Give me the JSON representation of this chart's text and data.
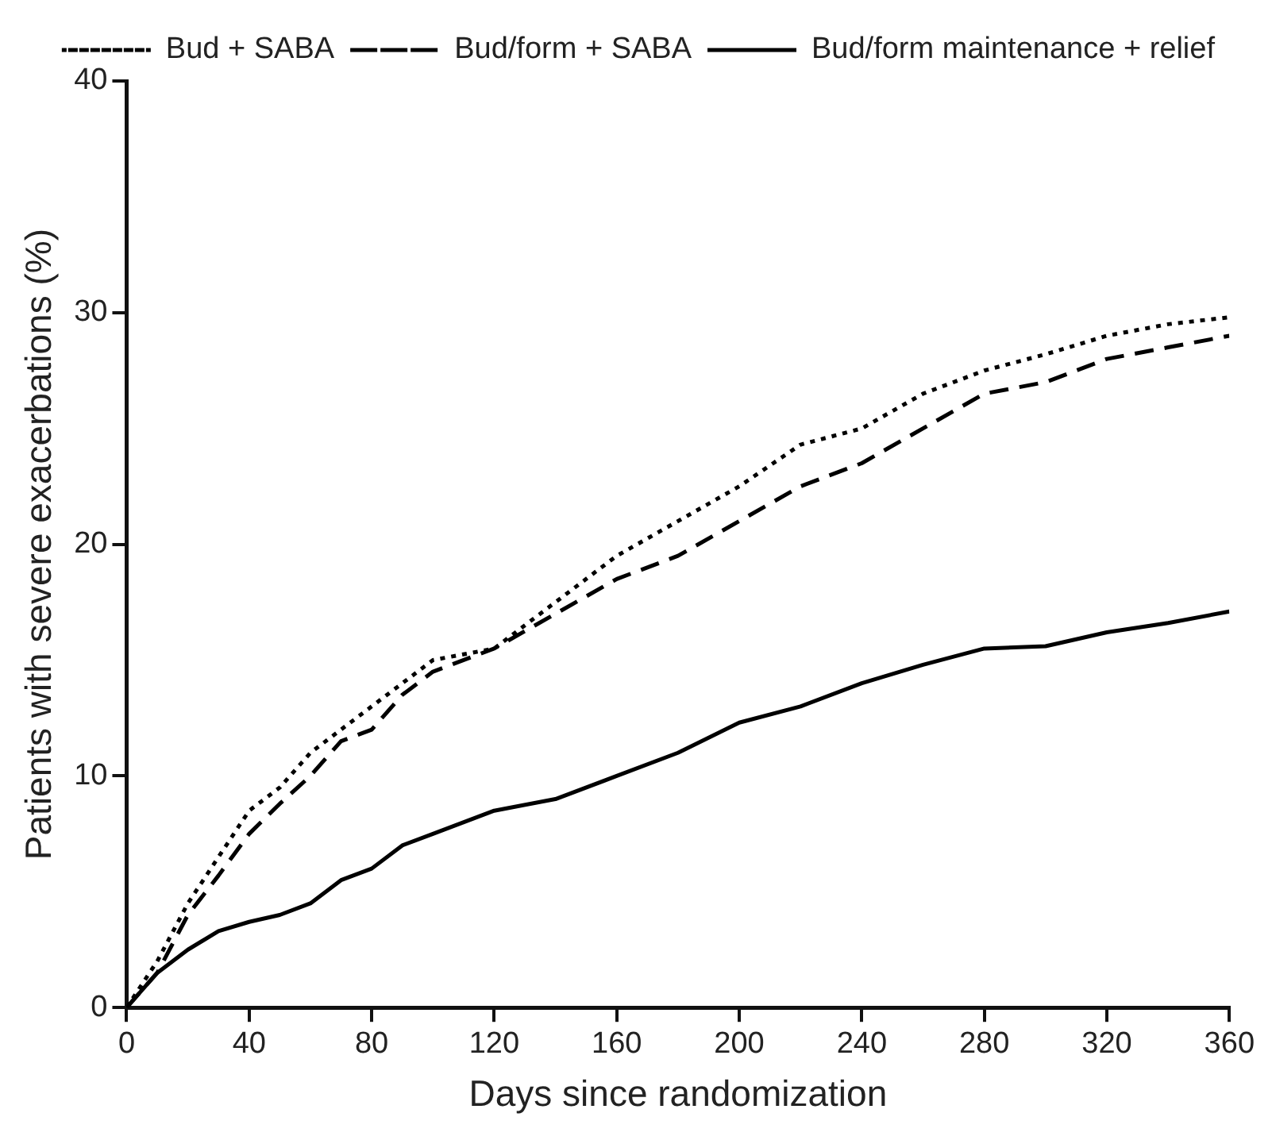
{
  "chart_data": {
    "type": "line",
    "xlabel": "Days since randomization",
    "ylabel": "Patients with severe exacerbations (%)",
    "x": [
      0,
      10,
      20,
      30,
      40,
      50,
      60,
      70,
      80,
      90,
      100,
      120,
      140,
      160,
      180,
      200,
      220,
      240,
      260,
      280,
      300,
      320,
      340,
      360
    ],
    "xlim": [
      0,
      360
    ],
    "xticks": [
      0,
      40,
      80,
      120,
      160,
      200,
      240,
      280,
      320,
      360
    ],
    "ylim": [
      0,
      40
    ],
    "yticks": [
      0,
      10,
      20,
      30,
      40
    ],
    "grid": false,
    "legend": "top right",
    "marker": "none",
    "series": [
      {
        "name": "Bud + SABA",
        "color": "#000000",
        "line_style": "dotted",
        "values": [
          0,
          2,
          4.5,
          6.5,
          8.5,
          9.5,
          11,
          12,
          13,
          14,
          15,
          15.5,
          17.5,
          19.5,
          21,
          22.5,
          24.3,
          25,
          26.5,
          27.5,
          28.2,
          29,
          29.5,
          29.8
        ]
      },
      {
        "name": "Bud/form + SABA",
        "color": "#000000",
        "line_style": "dashed",
        "values": [
          0,
          1.5,
          4,
          5.7,
          7.5,
          8.8,
          10,
          11.5,
          12,
          13.5,
          14.5,
          15.5,
          17,
          18.5,
          19.5,
          21,
          22.5,
          23.5,
          25,
          26.5,
          27,
          28,
          28.5,
          29
        ]
      },
      {
        "name": "Bud/form maintenance + relief",
        "color": "#000000",
        "line_style": "solid",
        "values": [
          0,
          1.5,
          2.5,
          3.3,
          3.7,
          4,
          4.5,
          5.5,
          6,
          7,
          7.5,
          8.5,
          9,
          10,
          11,
          12.3,
          13,
          14,
          14.8,
          15.5,
          15.6,
          16.2,
          16.6,
          17.1
        ]
      }
    ]
  }
}
